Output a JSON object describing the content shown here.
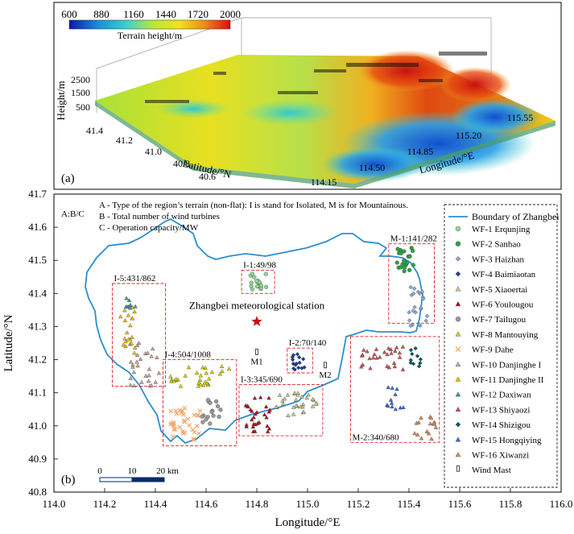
{
  "panel_a": {
    "label": "(a)",
    "colorbar": {
      "ticks": [
        "600",
        "880",
        "1160",
        "1440",
        "1720",
        "2000"
      ],
      "title": "Terrain height/m"
    },
    "z_axis": {
      "label": "Height/m",
      "ticks": [
        "2500",
        "1500",
        "500"
      ]
    },
    "lat_axis": {
      "label": "Latitude/°N",
      "ticks": [
        "41.4",
        "41.2",
        "41.0",
        "40.8",
        "40.6"
      ]
    },
    "lon_axis": {
      "label": "Longitude/°E",
      "ticks": [
        "114.15",
        "114.50",
        "114.85",
        "115.20",
        "115.55"
      ]
    }
  },
  "panel_b": {
    "label": "(b)",
    "x_axis": {
      "label": "Longitude/°E",
      "range": [
        114.0,
        116.0
      ],
      "ticks": [
        "114.0",
        "114.2",
        "114.4",
        "114.6",
        "114.8",
        "115.0",
        "115.2",
        "115.4",
        "115.6",
        "115.8",
        "116.0"
      ]
    },
    "y_axis": {
      "label": "Latitude/°N",
      "range": [
        40.8,
        41.7
      ],
      "ticks": [
        "40.8",
        "40.9",
        "41.0",
        "41.1",
        "41.2",
        "41.3",
        "41.4",
        "41.5",
        "41.6",
        "41.7"
      ]
    },
    "key": {
      "code": "A:B/C",
      "lines": [
        "A - Type of the region’s terrain (non-flat): I is stand for Isolated, M is for Mountainous.",
        "B - Total number of wind turbines",
        "C - Operation capacity/MW"
      ]
    },
    "station": {
      "label": "Zhangbei meteorological station",
      "lon": 114.8,
      "lat": 41.315
    },
    "masts": [
      {
        "label": "M1",
        "lon": 114.8,
        "lat": 41.22
      },
      {
        "label": "M2",
        "lon": 115.07,
        "lat": 41.18
      }
    ],
    "regions": [
      {
        "label": "I-1:49/98",
        "lon_range": [
          114.74,
          114.87
        ],
        "lat_range": [
          41.4,
          41.47
        ]
      },
      {
        "label": "I-2:70/140",
        "lon_range": [
          114.92,
          115.02
        ],
        "lat_range": [
          41.16,
          41.235
        ]
      },
      {
        "label": "I-3:345/690",
        "lon_range": [
          114.73,
          115.06
        ],
        "lat_range": [
          40.97,
          41.125
        ]
      },
      {
        "label": "I-4:504/1008",
        "lon_range": [
          114.43,
          114.72
        ],
        "lat_range": [
          40.94,
          41.2
        ]
      },
      {
        "label": "I-5:431/862",
        "lon_range": [
          114.23,
          114.44
        ],
        "lat_range": [
          41.12,
          41.43
        ]
      },
      {
        "label": "M-1:141/282",
        "lon_range": [
          115.32,
          115.5
        ],
        "lat_range": [
          41.31,
          41.55
        ]
      },
      {
        "label": "M-2:340/680",
        "lon_range": [
          115.17,
          115.52
        ],
        "lat_range": [
          40.95,
          41.27
        ]
      }
    ],
    "scale_bar": {
      "ticks": [
        "0",
        "10",
        "20 km"
      ]
    },
    "legend": {
      "boundary": "Boundary of Zhangbei",
      "wind_farms": [
        {
          "name": "WF-1 Erqunjing",
          "color": "#8fd694",
          "marker": "circle"
        },
        {
          "name": "WF-2 Sanhao",
          "color": "#2aa14a",
          "marker": "circle"
        },
        {
          "name": "WF-3 Haizhan",
          "color": "#8fa8d8",
          "marker": "diamond"
        },
        {
          "name": "WF-4 Baimiaotan",
          "color": "#1f3f8f",
          "marker": "diamond"
        },
        {
          "name": "WF-5 Xiaoertai",
          "color": "#c8c892",
          "marker": "triangle"
        },
        {
          "name": "WF-6 Youlougou",
          "color": "#b0101a",
          "marker": "triangle"
        },
        {
          "name": "WF-7 Tailugou",
          "color": "#9a9a9a",
          "marker": "circle"
        },
        {
          "name": "WF-8 Mantouying",
          "color": "#d9d400",
          "marker": "triangle"
        },
        {
          "name": "WF-9 Dahe",
          "color": "#f4a66a",
          "marker": "cross"
        },
        {
          "name": "WF-10 Danjinghe I",
          "color": "#c8a898",
          "marker": "triangle"
        },
        {
          "name": "WF-11 Danjinghe II",
          "color": "#f2c200",
          "marker": "triangle"
        },
        {
          "name": "WF-12 Daxiwan",
          "color": "#3a9aa4",
          "marker": "triangle"
        },
        {
          "name": "WF-13 Shiyaozi",
          "color": "#d45050",
          "marker": "triangle"
        },
        {
          "name": "WF-14 Shizigou",
          "color": "#0a5a6a",
          "marker": "diamond"
        },
        {
          "name": "WF-15 Hongqiying",
          "color": "#3a6ae0",
          "marker": "triangle"
        },
        {
          "name": "WF-16 Xiwanzi",
          "color": "#d98a55",
          "marker": "triangle"
        }
      ],
      "mast": "Wind Mast"
    }
  }
}
